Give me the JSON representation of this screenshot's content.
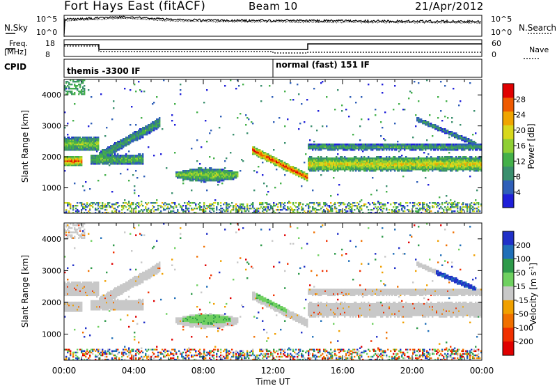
{
  "header": {
    "station": "Fort Hays East (fitACF)",
    "beam": "Beam 10",
    "date": "21/Apr/2012"
  },
  "top_panels": {
    "nsky_label": "N.Sky",
    "nsearch_label": "N.Search",
    "nave_label": "Nave",
    "freq_label_line1": "Freq.",
    "freq_label_line2": "[MHz]",
    "cpid_label": "CPID",
    "noise_ticks": [
      "10^5",
      "10^0"
    ],
    "freq_ticks": [
      "18",
      "8"
    ],
    "nave_ticks": [
      "60",
      "0"
    ]
  },
  "cpid_segments": [
    {
      "label": "themis -3300 IF",
      "start_hour": 0.0
    },
    {
      "label": "normal (fast) 151 IF",
      "start_hour": 12.0
    }
  ],
  "chart_data": [
    {
      "type": "heatmap",
      "quantity": "Power",
      "colorbar_label": "Power [dB]",
      "ylabel": "Slant Range [km]",
      "xlabel": "Time UT",
      "x_ticks": [
        "00:00",
        "04:00",
        "08:00",
        "12:00",
        "16:00",
        "20:00",
        "00:00"
      ],
      "x_range_hours": [
        0,
        24
      ],
      "y_ticks": [
        1000,
        2000,
        3000,
        4000
      ],
      "y_range_km": [
        180,
        4500
      ],
      "colorbar_ticks": [
        4,
        8,
        12,
        16,
        20,
        24,
        28
      ],
      "colorbar_range": [
        0,
        32
      ],
      "colors": [
        "#1f1fd9",
        "#2f5fb8",
        "#3a8f6e",
        "#44b04a",
        "#8fcf34",
        "#d8d81c",
        "#f0a500",
        "#ef5a00",
        "#e00000"
      ],
      "echo_regions": [
        {
          "name": "upper-band-early",
          "t_start": 0.0,
          "t_end": 2.0,
          "range_km": 2400,
          "width_km": 350,
          "power_db": 14
        },
        {
          "name": "lower-band-early",
          "t_start": 0.0,
          "t_end": 1.0,
          "range_km": 1850,
          "width_km": 250,
          "power_db": 24
        },
        {
          "name": "ramp-2to5",
          "t_start": 2.0,
          "t_end": 5.5,
          "range_start_km": 2000,
          "range_end_km": 3100,
          "width_km": 250,
          "power_db": 10
        },
        {
          "name": "lower-band-2to4",
          "t_start": 1.5,
          "t_end": 4.5,
          "range_km": 1900,
          "width_km": 250,
          "power_db": 12
        },
        {
          "name": "blob-08",
          "t_center": 8.2,
          "t_halfwidth": 1.8,
          "range_km": 1400,
          "width_km": 350,
          "power_db": 14
        },
        {
          "name": "descending-12",
          "t_start": 10.8,
          "t_end": 14.0,
          "range_start_km": 2200,
          "range_end_km": 1300,
          "width_km": 200,
          "power_db": 26
        },
        {
          "name": "evening-band",
          "t_start": 14.0,
          "t_end": 24.0,
          "range_km": 1750,
          "width_km": 350,
          "power_db": 18
        },
        {
          "name": "evening-upper",
          "t_start": 14.0,
          "t_end": 24.0,
          "range_km": 2300,
          "width_km": 150,
          "power_db": 10
        },
        {
          "name": "late-arc",
          "t_start": 20.2,
          "t_end": 23.6,
          "range_start_km": 3200,
          "range_end_km": 2400,
          "width_km": 120,
          "power_db": 8
        }
      ]
    },
    {
      "type": "heatmap",
      "quantity": "Velocity",
      "colorbar_label": "Velocity [m s^-1]",
      "ylabel": "Slant Range [km]",
      "xlabel": "Time UT",
      "x_ticks": [
        "00:00",
        "04:00",
        "08:00",
        "12:00",
        "16:00",
        "20:00",
        "00:00"
      ],
      "x_range_hours": [
        0,
        24
      ],
      "y_ticks": [
        1000,
        2000,
        3000,
        4000
      ],
      "y_range_km": [
        180,
        4500
      ],
      "colorbar_ticks": [
        200,
        100,
        50,
        15,
        -15,
        -50,
        -100,
        -200
      ],
      "colors": [
        "#2030c8",
        "#206fb8",
        "#2e9a4a",
        "#6fd060",
        "#c8c8c8",
        "#f0a000",
        "#f07000",
        "#f03000",
        "#e00000"
      ],
      "ground_scatter_color": "#c8c8c8",
      "green_regions": [
        {
          "name": "blob-08",
          "t_center": 8.2,
          "t_halfwidth": 1.4,
          "range_km": 1450,
          "width_km": 300,
          "velocity": 60
        },
        {
          "name": "descending-12",
          "t_start": 11.0,
          "t_end": 12.8,
          "range_start_km": 2200,
          "range_end_km": 1700,
          "width_km": 150,
          "velocity": 60
        }
      ],
      "blue_patch": {
        "t_start": 21.3,
        "t_end": 23.6,
        "range_km": 2400,
        "velocity": 200
      }
    }
  ]
}
